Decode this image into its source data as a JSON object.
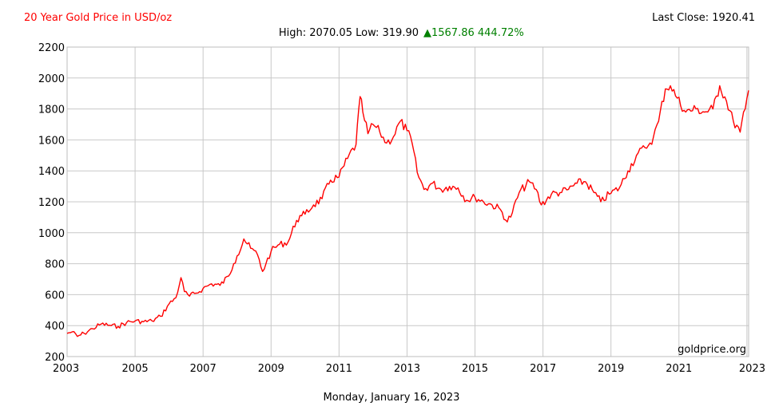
{
  "header": {
    "title": "20 Year Gold Price in USD/oz",
    "last_close_label": "Last Close: 1920.41",
    "stats_high_low": "High: 2070.05 Low: 319.90",
    "stats_change": "▲1567.86 444.72%"
  },
  "footer": {
    "date": "Monday, January 16, 2023",
    "watermark": "goldprice.org"
  },
  "colors": {
    "title": "#ff0000",
    "line": "#ff0000",
    "change": "#008000",
    "grid": "#c8c8c8",
    "text": "#000000"
  },
  "chart_data": {
    "type": "line",
    "title": "20 Year Gold Price in USD/oz",
    "xlabel": "",
    "ylabel": "",
    "xlim": [
      2003.0,
      2023.05
    ],
    "ylim": [
      200,
      2200
    ],
    "x_ticks": [
      "2003",
      "2005",
      "2007",
      "2009",
      "2011",
      "2013",
      "2015",
      "2017",
      "2019",
      "2021",
      "2023"
    ],
    "y_ticks": [
      "200",
      "400",
      "600",
      "800",
      "1000",
      "1200",
      "1400",
      "1600",
      "1800",
      "2000",
      "2200"
    ],
    "grid": true,
    "legend": "none",
    "series": [
      {
        "x": [
          2003.0,
          2003.15,
          2003.3,
          2003.5,
          2003.75,
          2004.0,
          2004.3,
          2004.5,
          2004.75,
          2005.0,
          2005.25,
          2005.5,
          2005.75,
          2006.0,
          2006.2,
          2006.35,
          2006.45,
          2006.6,
          2006.8,
          2007.0,
          2007.25,
          2007.5,
          2007.75,
          2007.9,
          2008.0,
          2008.2,
          2008.4,
          2008.6,
          2008.75,
          2008.85,
          2009.0,
          2009.2,
          2009.5,
          2009.75,
          2009.9,
          2010.0,
          2010.25,
          2010.5,
          2010.75,
          2011.0,
          2011.25,
          2011.5,
          2011.62,
          2011.7,
          2011.85,
          2012.0,
          2012.2,
          2012.4,
          2012.6,
          2012.8,
          2013.0,
          2013.15,
          2013.3,
          2013.5,
          2013.75,
          2014.0,
          2014.25,
          2014.5,
          2014.75,
          2015.0,
          2015.25,
          2015.5,
          2015.75,
          2015.95,
          2016.1,
          2016.3,
          2016.6,
          2016.8,
          2016.95,
          2017.25,
          2017.5,
          2017.75,
          2018.0,
          2018.25,
          2018.5,
          2018.7,
          2018.95,
          2019.25,
          2019.5,
          2019.75,
          2020.0,
          2020.15,
          2020.25,
          2020.4,
          2020.6,
          2020.75,
          2020.95,
          2021.2,
          2021.5,
          2021.75,
          2022.0,
          2022.2,
          2022.4,
          2022.6,
          2022.8,
          2022.95,
          2023.05
        ],
        "values": [
          350,
          360,
          330,
          350,
          380,
          410,
          400,
          395,
          420,
          430,
          425,
          430,
          460,
          540,
          580,
          710,
          620,
          590,
          610,
          640,
          670,
          660,
          720,
          800,
          850,
          960,
          900,
          860,
          750,
          800,
          880,
          920,
          940,
          1080,
          1110,
          1120,
          1180,
          1220,
          1340,
          1360,
          1480,
          1570,
          1880,
          1780,
          1640,
          1700,
          1650,
          1580,
          1620,
          1720,
          1660,
          1580,
          1390,
          1280,
          1320,
          1280,
          1300,
          1290,
          1210,
          1230,
          1200,
          1180,
          1150,
          1070,
          1130,
          1260,
          1330,
          1280,
          1180,
          1250,
          1260,
          1280,
          1320,
          1330,
          1260,
          1200,
          1250,
          1290,
          1400,
          1500,
          1550,
          1580,
          1620,
          1720,
          1930,
          1950,
          1870,
          1780,
          1800,
          1780,
          1800,
          1950,
          1850,
          1720,
          1650,
          1800,
          1920
        ]
      }
    ]
  }
}
